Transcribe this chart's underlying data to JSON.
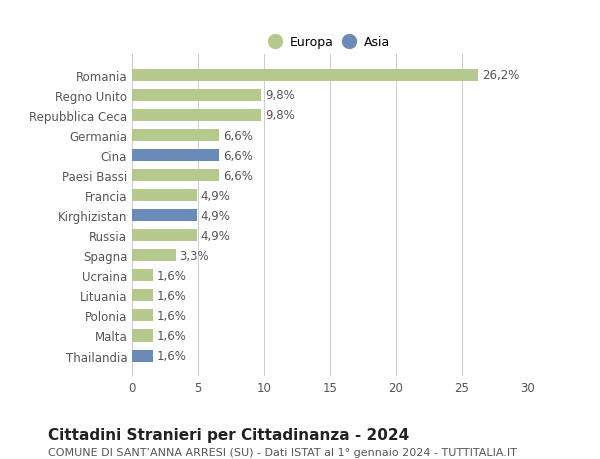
{
  "categories": [
    "Romania",
    "Regno Unito",
    "Repubblica Ceca",
    "Germania",
    "Cina",
    "Paesi Bassi",
    "Francia",
    "Kirghizistan",
    "Russia",
    "Spagna",
    "Ucraina",
    "Lituania",
    "Polonia",
    "Malta",
    "Thailandia"
  ],
  "values": [
    26.2,
    9.8,
    9.8,
    6.6,
    6.6,
    6.6,
    4.9,
    4.9,
    4.9,
    3.3,
    1.6,
    1.6,
    1.6,
    1.6,
    1.6
  ],
  "labels": [
    "26,2%",
    "9,8%",
    "9,8%",
    "6,6%",
    "6,6%",
    "6,6%",
    "4,9%",
    "4,9%",
    "4,9%",
    "3,3%",
    "1,6%",
    "1,6%",
    "1,6%",
    "1,6%",
    "1,6%"
  ],
  "colors": [
    "#b5c98e",
    "#b5c98e",
    "#b5c98e",
    "#b5c98e",
    "#6b8ab8",
    "#b5c98e",
    "#b5c98e",
    "#6b8ab8",
    "#b5c98e",
    "#b5c98e",
    "#b5c98e",
    "#b5c98e",
    "#b5c98e",
    "#b5c98e",
    "#6b8ab8"
  ],
  "europa_color": "#b5c98e",
  "asia_color": "#6b8ab8",
  "xlim": [
    0,
    30
  ],
  "xticks": [
    0,
    5,
    10,
    15,
    20,
    25,
    30
  ],
  "title": "Cittadini Stranieri per Cittadinanza - 2024",
  "subtitle": "COMUNE DI SANT’ANNA ARRESI (SU) - Dati ISTAT al 1° gennaio 2024 - TUTTITALIA.IT",
  "bg_color": "#ffffff",
  "grid_color": "#cccccc",
  "bar_height": 0.6,
  "label_fontsize": 8.5,
  "tick_fontsize": 8.5,
  "title_fontsize": 11,
  "subtitle_fontsize": 8,
  "legend_fontsize": 9
}
